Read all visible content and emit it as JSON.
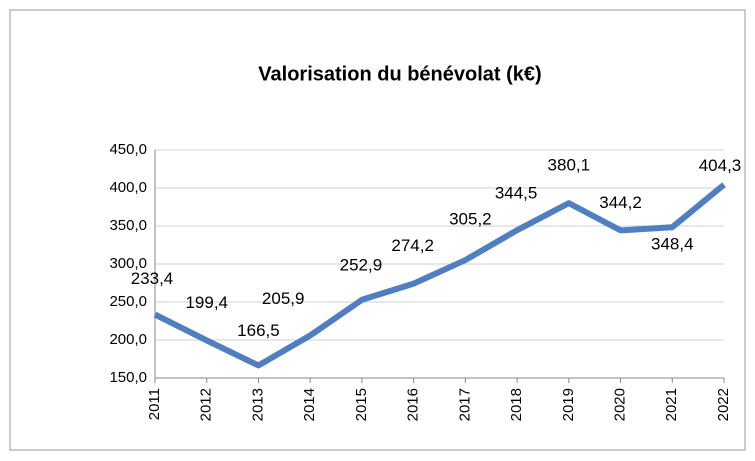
{
  "chart_data": {
    "type": "line",
    "title": "Valorisation du bénévolat (k€)",
    "categories": [
      "2011",
      "2012",
      "2013",
      "2014",
      "2015",
      "2016",
      "2017",
      "2018",
      "2019",
      "2020",
      "2021",
      "2022"
    ],
    "series": [
      {
        "name": "Valorisation",
        "color": "#4f7fc0",
        "values": [
          233.4,
          199.4,
          166.5,
          205.9,
          252.9,
          274.2,
          305.2,
          344.5,
          380.1,
          344.2,
          348.4,
          404.3
        ],
        "value_labels": [
          "233,4",
          "199,4",
          "166,5",
          "205,9",
          "252,9",
          "274,2",
          "305,2",
          "344,5",
          "380,1",
          "344,2",
          "348,4",
          "404,3"
        ]
      }
    ],
    "ylim": [
      150,
      450
    ],
    "yticks": [
      {
        "value": 150,
        "label": "150,0"
      },
      {
        "value": 200,
        "label": "200,0"
      },
      {
        "value": 250,
        "label": "250,0"
      },
      {
        "value": 300,
        "label": "300,0"
      },
      {
        "value": 350,
        "label": "350,0"
      },
      {
        "value": 400,
        "label": "400,0"
      },
      {
        "value": 450,
        "label": "450,0"
      }
    ],
    "grid": true
  }
}
